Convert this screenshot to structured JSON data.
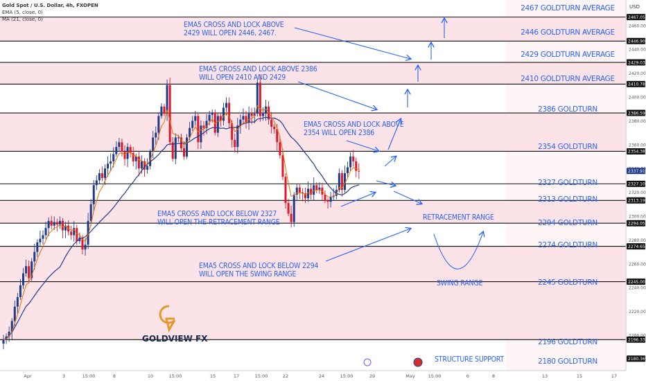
{
  "header": {
    "symbol": "Gold Spot / U.S. Dollar, 4h, FXOPEN",
    "ema": "EMA (5, close, 0)",
    "ma": "MA (21, close, 0)",
    "currency": "USD"
  },
  "chart_data": {
    "type": "candlestick",
    "y_range": [
      2175,
      2468
    ],
    "price_ticks": [
      2180,
      2200,
      2220,
      2240,
      2260,
      2280,
      2300,
      2320,
      2340,
      2360,
      2380,
      2400,
      2420,
      2440,
      2460
    ],
    "level_labels": [
      "2467.05",
      "2446.90",
      "2429.03",
      "2410.78",
      "2386.59",
      "2354.38",
      "2337.91",
      "2327.10",
      "2313.19",
      "2294.05",
      "2274.65",
      "2245.00",
      "2196.33",
      "2180.36"
    ],
    "x_ticks": [
      "Apr",
      "3",
      "15:00",
      "8",
      "10",
      "15:00",
      "15",
      "17",
      "15:00",
      "22",
      "24",
      "15:00",
      "29",
      "May",
      "15:00",
      "6",
      "8",
      "13",
      "15",
      "17"
    ],
    "level_lines": [
      2467.05,
      2446.9,
      2429.03,
      2410.78,
      2386.59,
      2354.38,
      2327.1,
      2313.19,
      2294.05,
      2274.65,
      2245.0,
      2196.33
    ],
    "pink_zones": [
      [
        2446.9,
        2467.05
      ],
      [
        2410.78,
        2429.03
      ],
      [
        2354.38,
        2386.59
      ],
      [
        2294.05,
        2313.19
      ],
      [
        2196.33,
        2274.65
      ]
    ],
    "current_price": 2337.91,
    "closes": [
      2196,
      2199,
      2203,
      2212,
      2224,
      2232,
      2242,
      2252,
      2258,
      2248,
      2262,
      2270,
      2278,
      2281,
      2284,
      2290,
      2296,
      2292,
      2295,
      2293,
      2296,
      2288,
      2292,
      2287,
      2284,
      2290,
      2279,
      2282,
      2272,
      2276,
      2296,
      2310,
      2326,
      2330,
      2336,
      2332,
      2340,
      2344,
      2346,
      2352,
      2358,
      2362,
      2354,
      2348,
      2358,
      2353,
      2346,
      2350,
      2340,
      2346,
      2339,
      2342,
      2354,
      2366,
      2370,
      2384,
      2392,
      2386,
      2410,
      2362,
      2348,
      2366,
      2366,
      2357,
      2350,
      2366,
      2374,
      2380,
      2384,
      2362,
      2376,
      2374,
      2380,
      2385,
      2387,
      2370,
      2384,
      2380,
      2391,
      2395,
      2378,
      2364,
      2358,
      2376,
      2381,
      2384,
      2379,
      2386,
      2384,
      2386,
      2412,
      2384,
      2386,
      2392,
      2381,
      2375,
      2373,
      2362,
      2351,
      2333,
      2311,
      2302,
      2295,
      2318,
      2324,
      2320,
      2319,
      2315,
      2323,
      2318,
      2326,
      2322,
      2324,
      2318,
      2313,
      2312,
      2316,
      2317,
      2322,
      2336,
      2322,
      2336,
      2341,
      2350,
      2346,
      2338,
      2337.91
    ]
  },
  "annotations": [
    "EMA5 CROSS AND LOCK ABOVE",
    "2429 WILL OPEN 2446, 2467.",
    "EMA5 CROSS AND LOCK ABOVE 2386",
    "WILL OPEN 2410 AND 2429",
    "EMA5 CROSS AND LOCK ABOVE",
    "2354 WILL OPEN 2386",
    "EMA5 CROSS AND LOCK BELOW 2327",
    "WILL  OPEN THE RETRACEMENT RANGE",
    "EMA5 CROSS AND LOCK BELOW 2294",
    "WILL  OPEN THE SWING RANGE",
    "RETRACEMENT RANGE",
    "SWING RANGE",
    "STRUCTURE SUPPORT"
  ],
  "levels": [
    "2467 GOLDTURN AVERAGE",
    "2446 GOLDTURN AVERAGE",
    "2429 GOLDTURN AVERAGE",
    "2410 GOLDTURN AVERAGE",
    "2386 GOLDTURN",
    "2354 GOLDTURN",
    "2327 GOLDTURN",
    "2313 GOLDTURN",
    "2294 GOLDTURN",
    "2274 GOLDTURN",
    "2245 GOLDTURN",
    "2196 GOLDTURN",
    "2180 GOLDTURN"
  ],
  "logo": {
    "name": "GOLDVIEW FX",
    "mark": "G"
  },
  "colors": {
    "accent": "#2962ff",
    "up": "#1e3a8a",
    "down": "#e0162b",
    "zone": "#fbe3e8",
    "ema": "#ef6c00",
    "ma": "#1e3a8a"
  }
}
